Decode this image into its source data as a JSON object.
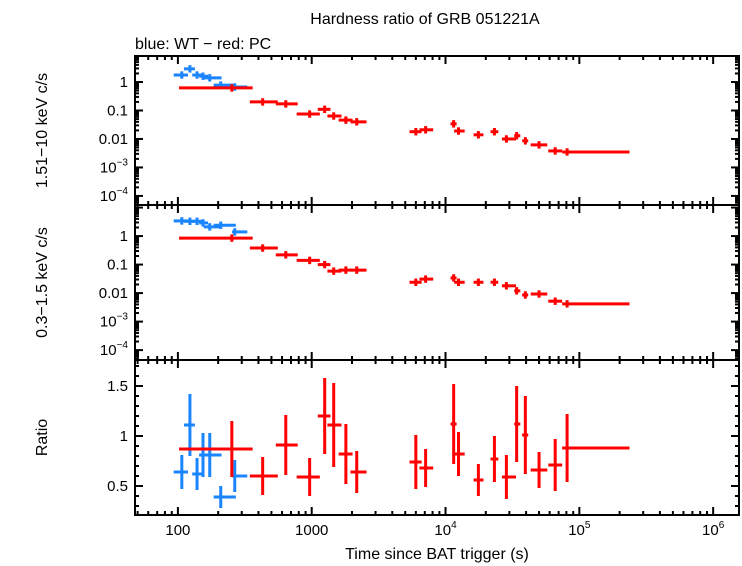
{
  "chart_data": {
    "type": "scatter",
    "title": "Hardness ratio of GRB 051221A",
    "subtitle": "blue: WT − red: PC",
    "xlabel": "Time since BAT trigger (s)",
    "xscale": "log",
    "xlim": [
      47.8,
      1560000
    ],
    "xticks": [
      {
        "value": 100,
        "label": "100"
      },
      {
        "value": 1000,
        "label": "1000"
      },
      {
        "value": 10000,
        "label": "10^4"
      },
      {
        "value": 100000,
        "label": "10^5"
      },
      {
        "value": 1000000,
        "label": "10^6"
      }
    ],
    "colors": {
      "WT": "#1a85ff",
      "PC": "#ff0000",
      "axis": "#000000"
    },
    "panels": [
      {
        "key": "hard",
        "ylabel": "1.51−10 keV c/s",
        "yscale": "log",
        "ylim": [
          4.8e-05,
          8.2
        ],
        "yticks": [
          {
            "value": 1,
            "label": "1"
          },
          {
            "value": 0.1,
            "label": "0.1"
          },
          {
            "value": 0.01,
            "label": "0.01"
          },
          {
            "value": 0.001,
            "label": "10^−3"
          },
          {
            "value": 0.0001,
            "label": "10^−4"
          }
        ]
      },
      {
        "key": "soft",
        "ylabel": "0.3−1.5 keV c/s",
        "yscale": "log",
        "ylim": [
          4.5e-05,
          12.3
        ],
        "yticks": [
          {
            "value": 1,
            "label": "1"
          },
          {
            "value": 0.1,
            "label": "0.1"
          },
          {
            "value": 0.01,
            "label": "0.01"
          },
          {
            "value": 0.001,
            "label": "10^−3"
          },
          {
            "value": 0.0001,
            "label": "10^−4"
          }
        ]
      },
      {
        "key": "ratio",
        "ylabel": "Ratio",
        "yscale": "linear",
        "ylim": [
          0.21,
          1.76
        ],
        "yticks": [
          {
            "value": 0.5,
            "label": "0.5"
          },
          {
            "value": 1,
            "label": "1"
          },
          {
            "value": 1.5,
            "label": "1.5"
          }
        ]
      }
    ],
    "series": [
      {
        "mode": "WT",
        "points": [
          {
            "t": 107,
            "tlo": 93,
            "thi": 119,
            "hard": 1.76,
            "soft": 3.4,
            "ratio": 0.64,
            "ratio_err": 0.17
          },
          {
            "t": 123,
            "tlo": 111,
            "thi": 134,
            "hard": 2.9,
            "soft": 3.3,
            "ratio": 1.11,
            "ratio_err": 0.31
          },
          {
            "t": 139,
            "tlo": 128,
            "thi": 152,
            "hard": 1.76,
            "soft": 3.3,
            "ratio": 0.62,
            "ratio_err": 0.16
          },
          {
            "t": 154,
            "tlo": 144,
            "thi": 168,
            "hard": 1.6,
            "soft": 2.9,
            "ratio": 0.81,
            "ratio_err": 0.22
          },
          {
            "t": 173,
            "tlo": 156,
            "thi": 212,
            "hard": 1.4,
            "soft": 2.1,
            "ratio": 0.81,
            "ratio_err": 0.22
          },
          {
            "t": 209,
            "tlo": 185,
            "thi": 271,
            "hard": 0.78,
            "soft": 2.4,
            "ratio": 0.39,
            "ratio_err": 0.11
          },
          {
            "t": 266,
            "tlo": 254,
            "thi": 330,
            "hard": 0.67,
            "soft": 1.4,
            "ratio": 0.6,
            "ratio_err": 0.16
          }
        ]
      },
      {
        "mode": "PC",
        "points": [
          {
            "t": 253,
            "tlo": 102,
            "thi": 362,
            "hard": 0.62,
            "soft": 0.85,
            "ratio": 0.87,
            "ratio_err": 0.28
          },
          {
            "t": 430,
            "tlo": 345,
            "thi": 558,
            "hard": 0.2,
            "soft": 0.38,
            "ratio": 0.6,
            "ratio_err": 0.19
          },
          {
            "t": 640,
            "tlo": 539,
            "thi": 786,
            "hard": 0.17,
            "soft": 0.22,
            "ratio": 0.91,
            "ratio_err": 0.3
          },
          {
            "t": 965,
            "tlo": 772,
            "thi": 1150,
            "hard": 0.075,
            "soft": 0.14,
            "ratio": 0.59,
            "ratio_err": 0.19
          },
          {
            "t": 1250,
            "tlo": 1110,
            "thi": 1380,
            "hard": 0.11,
            "soft": 0.1,
            "ratio": 1.2,
            "ratio_err": 0.38
          },
          {
            "t": 1460,
            "tlo": 1310,
            "thi": 1670,
            "hard": 0.064,
            "soft": 0.059,
            "ratio": 1.11,
            "ratio_err": 0.42
          },
          {
            "t": 1800,
            "tlo": 1590,
            "thi": 2020,
            "hard": 0.046,
            "soft": 0.064,
            "ratio": 0.82,
            "ratio_err": 0.3
          },
          {
            "t": 2170,
            "tlo": 1950,
            "thi": 2570,
            "hard": 0.04,
            "soft": 0.064,
            "ratio": 0.64,
            "ratio_err": 0.21
          },
          {
            "t": 6000,
            "tlo": 5380,
            "thi": 6630,
            "hard": 0.018,
            "soft": 0.024,
            "ratio": 0.74,
            "ratio_err": 0.27
          },
          {
            "t": 7100,
            "tlo": 6380,
            "thi": 8090,
            "hard": 0.021,
            "soft": 0.031,
            "ratio": 0.68,
            "ratio_err": 0.19
          },
          {
            "t": 11500,
            "tlo": 10900,
            "thi": 12100,
            "hard": 0.034,
            "soft": 0.034,
            "ratio": 1.12,
            "ratio_err": 0.4
          },
          {
            "t": 12500,
            "tlo": 11600,
            "thi": 13900,
            "hard": 0.019,
            "soft": 0.024,
            "ratio": 0.82,
            "ratio_err": 0.22
          },
          {
            "t": 17600,
            "tlo": 16200,
            "thi": 19200,
            "hard": 0.014,
            "soft": 0.024,
            "ratio": 0.56,
            "ratio_err": 0.16
          },
          {
            "t": 23200,
            "tlo": 21700,
            "thi": 24800,
            "hard": 0.018,
            "soft": 0.024,
            "ratio": 0.77,
            "ratio_err": 0.23
          },
          {
            "t": 28500,
            "tlo": 26400,
            "thi": 33600,
            "hard": 0.01,
            "soft": 0.018,
            "ratio": 0.59,
            "ratio_err": 0.22
          },
          {
            "t": 34000,
            "tlo": 32600,
            "thi": 36200,
            "hard": 0.013,
            "soft": 0.012,
            "ratio": 1.12,
            "ratio_err": 0.38
          },
          {
            "t": 39500,
            "tlo": 37400,
            "thi": 41500,
            "hard": 0.0086,
            "soft": 0.0086,
            "ratio": 1.01,
            "ratio_err": 0.39
          },
          {
            "t": 50000,
            "tlo": 43300,
            "thi": 57600,
            "hard": 0.0062,
            "soft": 0.0093,
            "ratio": 0.66,
            "ratio_err": 0.18
          },
          {
            "t": 66000,
            "tlo": 58600,
            "thi": 74400,
            "hard": 0.0038,
            "soft": 0.0052,
            "ratio": 0.71,
            "ratio_err": 0.26
          },
          {
            "t": 81000,
            "tlo": 74400,
            "thi": 237000,
            "hard": 0.0035,
            "soft": 0.0042,
            "ratio": 0.88,
            "ratio_err": 0.34
          }
        ]
      }
    ]
  }
}
